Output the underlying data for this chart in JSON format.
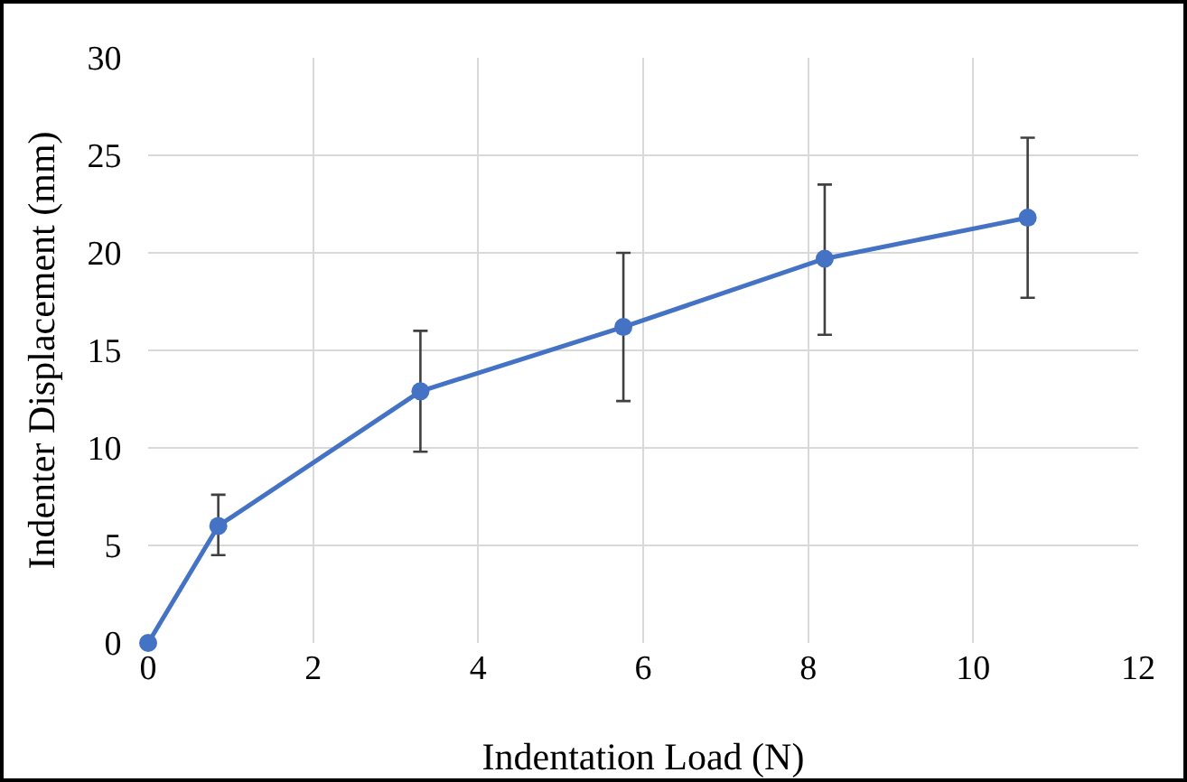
{
  "chart_data": {
    "type": "line",
    "xlabel": "Indentation Load (N)",
    "ylabel": "Indenter Displacement (mm)",
    "x": [
      0,
      0.85,
      3.3,
      5.76,
      8.2,
      10.66
    ],
    "series": [
      {
        "color": "#4472c4",
        "values": [
          0,
          6.0,
          12.9,
          16.2,
          19.7,
          21.8
        ],
        "errors": [
          null,
          [
            4.5,
            7.6
          ],
          [
            9.8,
            16.0
          ],
          [
            12.4,
            20.0
          ],
          [
            15.8,
            23.5
          ],
          [
            17.7,
            25.9
          ]
        ]
      }
    ],
    "xlim": [
      0,
      12
    ],
    "xticks": [
      0,
      2,
      4,
      6,
      8,
      10,
      12
    ],
    "ylim": [
      0,
      30
    ],
    "yticks": [
      0,
      5,
      10,
      15,
      20,
      25,
      30
    ],
    "grid": true,
    "marker": "circle",
    "line_style": "solid"
  }
}
